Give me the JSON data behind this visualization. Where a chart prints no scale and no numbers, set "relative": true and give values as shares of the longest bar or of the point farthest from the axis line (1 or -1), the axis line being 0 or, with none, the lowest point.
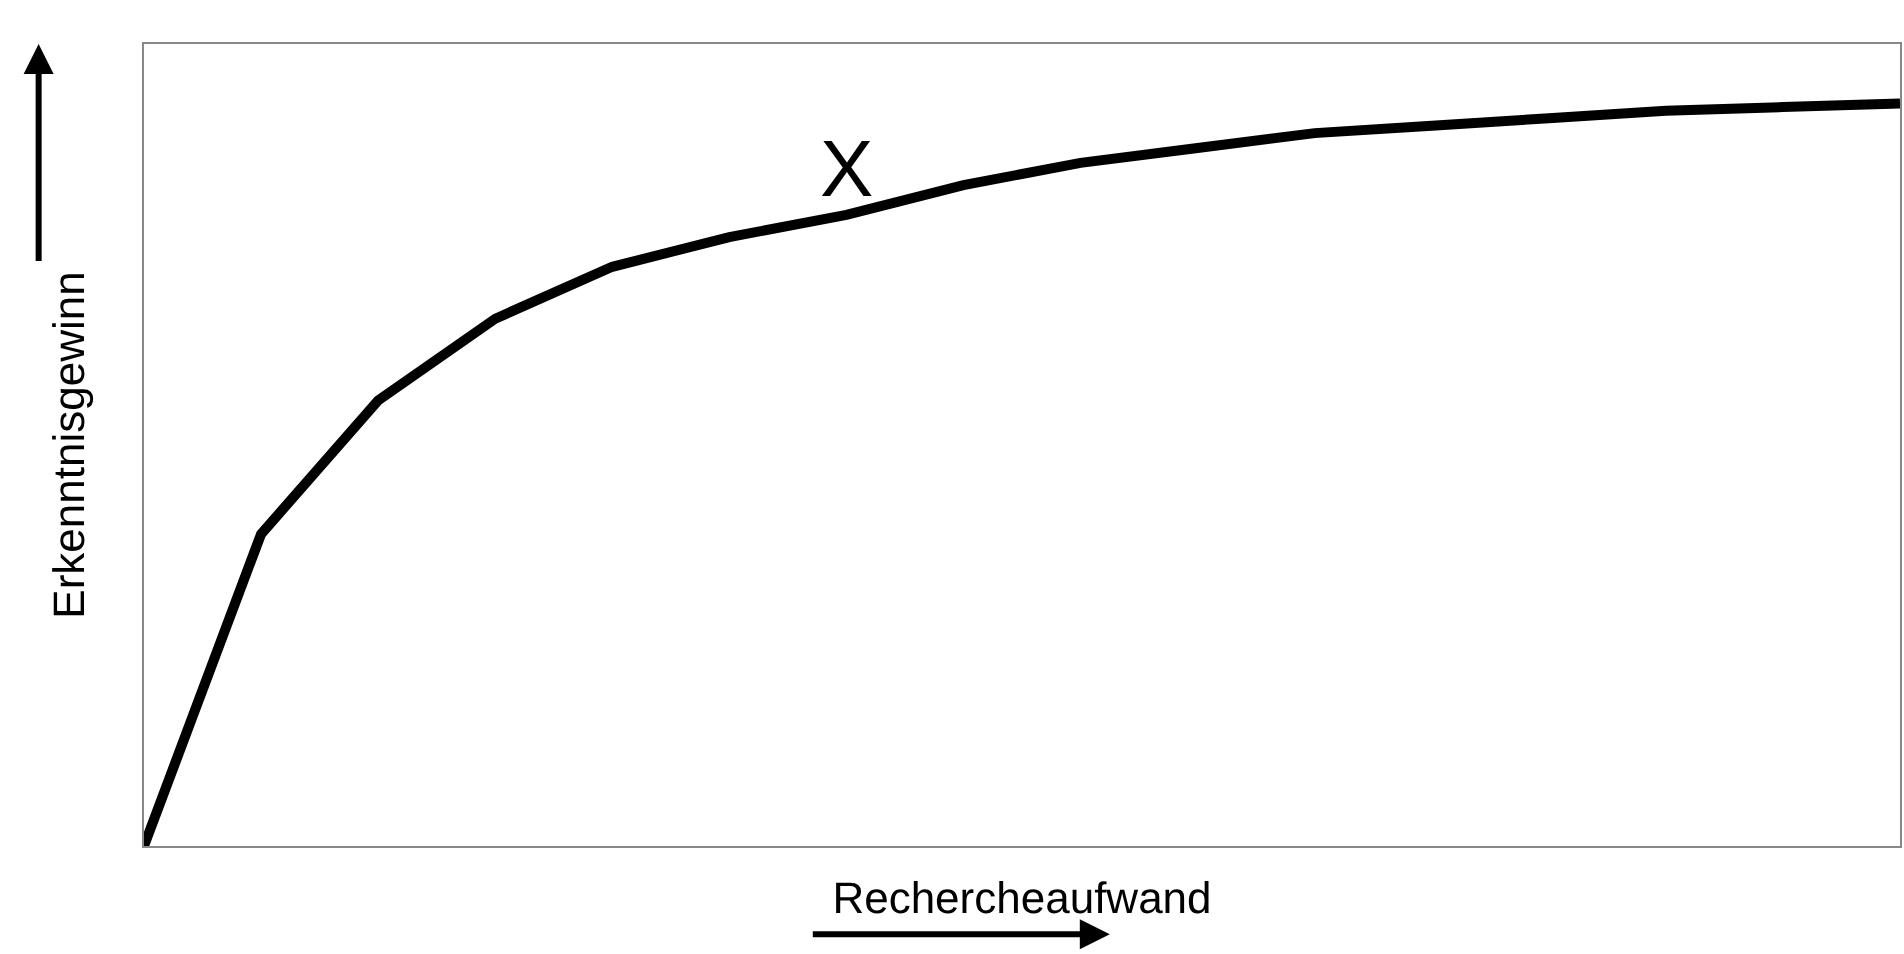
{
  "chart_data": {
    "type": "line",
    "relative": true,
    "xlabel": "Rechercheaufwand",
    "ylabel": "Erkenntnisgewinn",
    "categories": [
      null,
      null,
      null,
      null,
      null,
      null,
      null,
      null,
      null,
      null,
      null,
      null,
      null,
      null,
      null,
      null
    ],
    "series": [
      {
        "color": "#000000",
        "values": [
          0,
          0.42,
          0.6,
          0.71,
          0.78,
          0.82,
          0.85,
          0.89,
          0.92,
          0.94,
          0.96,
          0.97,
          0.98,
          0.99,
          0.995,
          1
        ]
      }
    ],
    "annotations": [
      {
        "text": "X",
        "y": 0.85
      }
    ],
    "marker": "none",
    "line_style": "solid"
  }
}
